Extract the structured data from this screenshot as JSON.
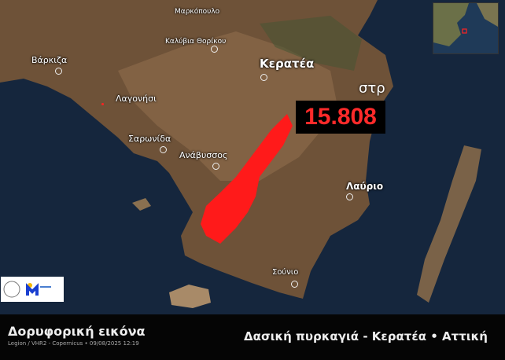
{
  "map": {
    "places": [
      {
        "name": "Μαρκόπουλο"
      },
      {
        "name": "Καλύβια Θορίκου"
      },
      {
        "name": "Βάρκιζα"
      },
      {
        "name": "Λαγονήσι"
      },
      {
        "name": "Κερατέα"
      },
      {
        "name": "Σαρωνίδα"
      },
      {
        "name": "Ανάβυσσος"
      },
      {
        "name": "Λαύριο"
      },
      {
        "name": "Σούνιο"
      }
    ],
    "burned_area": {
      "value": "15.808",
      "unit": "στρ"
    },
    "colors": {
      "sea": "#15263d",
      "land": "#7a5a3e",
      "burn": "#ff1a1a",
      "area_text": "#ff2a2a"
    }
  },
  "footer": {
    "title": "Δορυφορική εικόνα",
    "credit": "Legion / VHR2 - Copernicus • 09/08/2025 12:19",
    "headline": "Δασική πυρκαγιά - Κερατέα • Αττική"
  }
}
